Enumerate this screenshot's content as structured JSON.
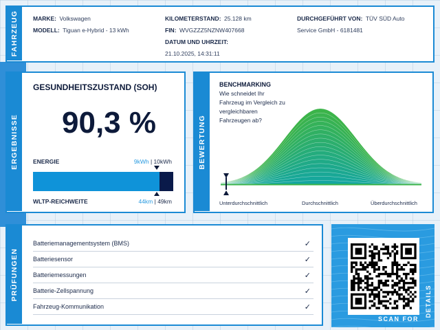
{
  "vehicle": {
    "tab": "FAHRZEUG",
    "make_label": "MARKE:",
    "make": "Volkswagen",
    "model_label": "MODELL:",
    "model": "Tiguan e-Hybrid - 13 kWh",
    "mileage_label": "KILOMETERSTAND:",
    "mileage": "25.128 km",
    "vin_label": "FIN:",
    "vin": "WVGZZZ5NZNW407668",
    "datetime_label": "DATUM UND UHRZEIT:",
    "datetime": "21.10.2025, 14:31:11",
    "performed_label": "DURCHGEFÜHRT VON:",
    "performed_line1": "TÜV SÜD Auto",
    "performed_line2": "Service GmbH - 6181481"
  },
  "results": {
    "tab": "ERGEBNISSE",
    "soh_title": "GESUNDHEITSZUSTAND (SOH)",
    "soh_value": "90,3 %",
    "soh_fraction": 0.903,
    "energy_label": "ENERGIE",
    "energy_current": "9kWh",
    "energy_sep": " | ",
    "energy_total": "10kWh",
    "range_label": "WLTP-REICHWEITE",
    "range_current": "44km",
    "range_sep": " | ",
    "range_total": "49km"
  },
  "benchmark": {
    "tab": "BEWERTUNG",
    "title": "BENCHMARKING",
    "question": [
      "Wie schneidet Ihr",
      "Fahrzeug im Vergleich zu",
      "vergleichbaren",
      "Fahrzeugen ab?"
    ],
    "label_low": "Unterdurchschnittlich",
    "label_mid": "Durchschnittlich",
    "label_high": "Überdurchschnittlich",
    "marker_position": 0.0
  },
  "checks": {
    "tab": "PRÜFUNGEN",
    "items": [
      {
        "label": "Batteriemanagementsystem (BMS)",
        "status": "✓"
      },
      {
        "label": "Batteriesensor",
        "status": "✓"
      },
      {
        "label": "Batteriemessungen",
        "status": "✓"
      },
      {
        "label": "Batterie-Zellspannung",
        "status": "✓"
      },
      {
        "label": "Fahrzeug-Kommunikation",
        "status": "✓"
      }
    ]
  },
  "qr": {
    "scan_label": "SCAN FOR",
    "details_label": "DETAILS"
  },
  "colors": {
    "accent": "#1a8ad4",
    "bar_fill": "#0f93d9",
    "bar_remaining": "#0a1a4a",
    "curve_green": "#3cb44a",
    "curve_teal": "#14a6a0"
  }
}
